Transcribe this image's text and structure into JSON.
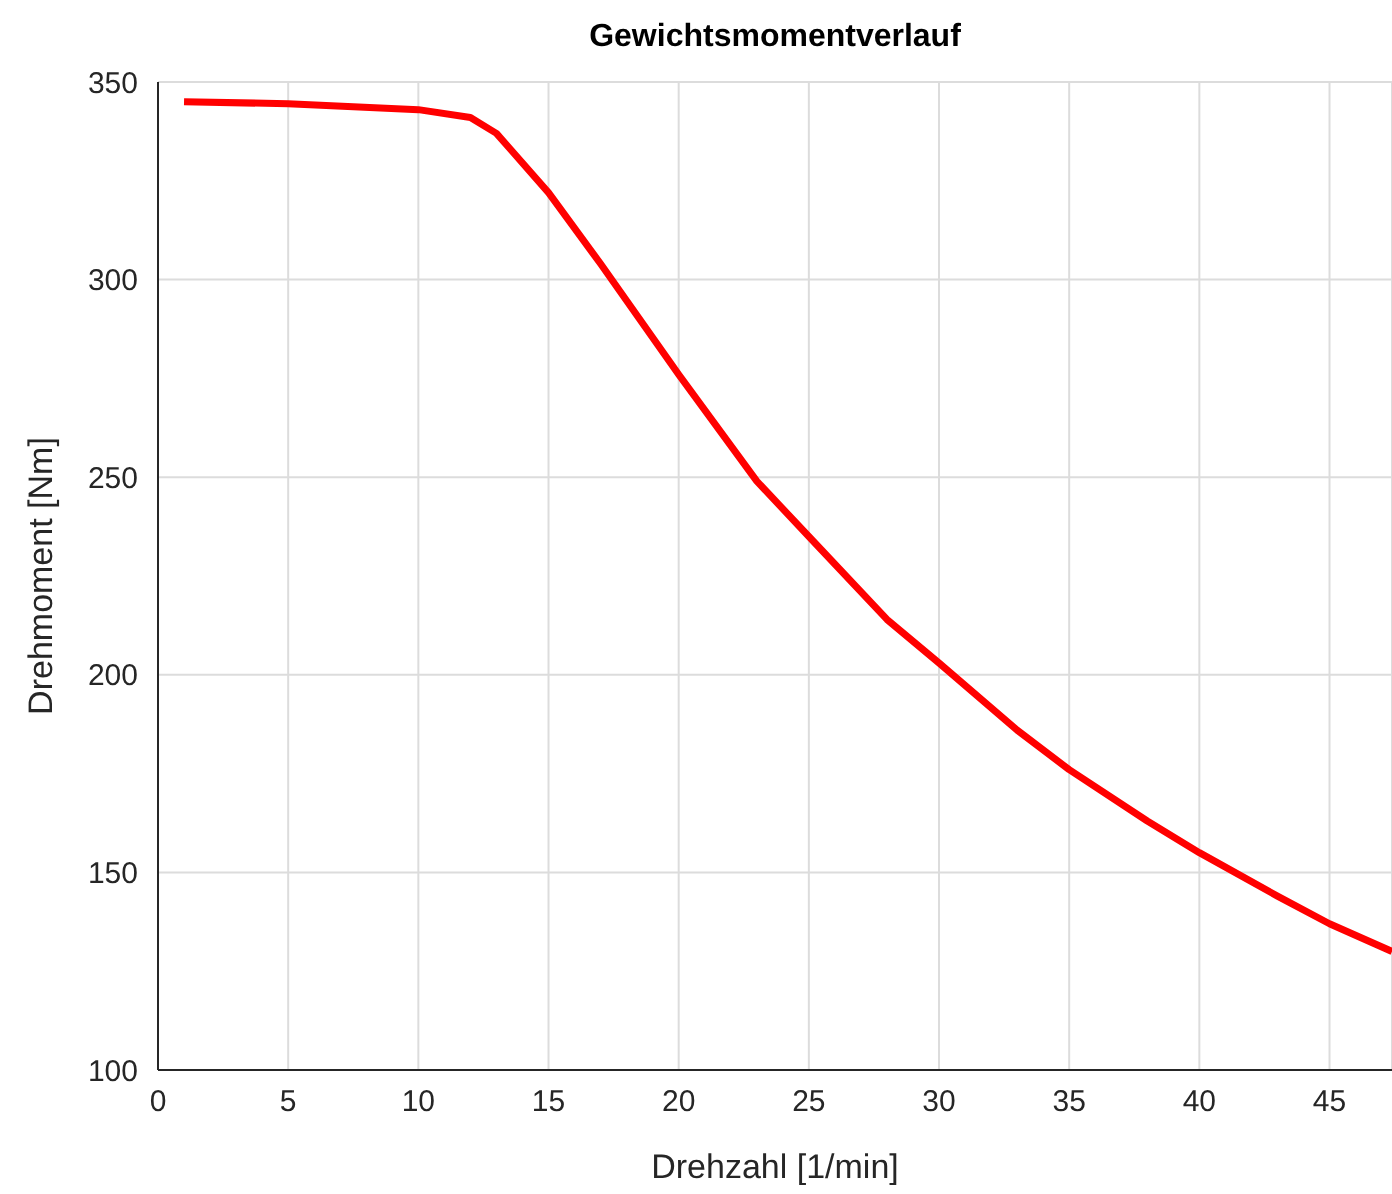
{
  "chart_data": {
    "type": "line",
    "title": "Gewichtsmomentverlauf",
    "xlabel": "Drehzahl [1/min]",
    "ylabel": "Drehmoment [Nm]",
    "x": [
      1,
      5,
      10,
      12,
      13,
      15,
      17,
      20,
      23,
      25,
      28,
      30,
      33,
      35,
      38,
      40,
      43,
      45,
      47.4
    ],
    "series": [
      {
        "color": "#ff0000",
        "values": [
          345,
          344.5,
          343,
          341,
          337,
          322,
          304,
          276,
          249,
          235,
          214,
          203,
          186,
          176,
          163,
          155,
          144,
          137,
          130
        ]
      }
    ],
    "xlim": [
      0,
      47.4
    ],
    "ylim": [
      100,
      350
    ],
    "xticks": [
      0,
      5,
      10,
      15,
      20,
      25,
      30,
      35,
      40,
      45
    ],
    "yticks": [
      100,
      150,
      200,
      250,
      300,
      350
    ],
    "grid": true,
    "marker": "none",
    "line_style": "solid"
  }
}
